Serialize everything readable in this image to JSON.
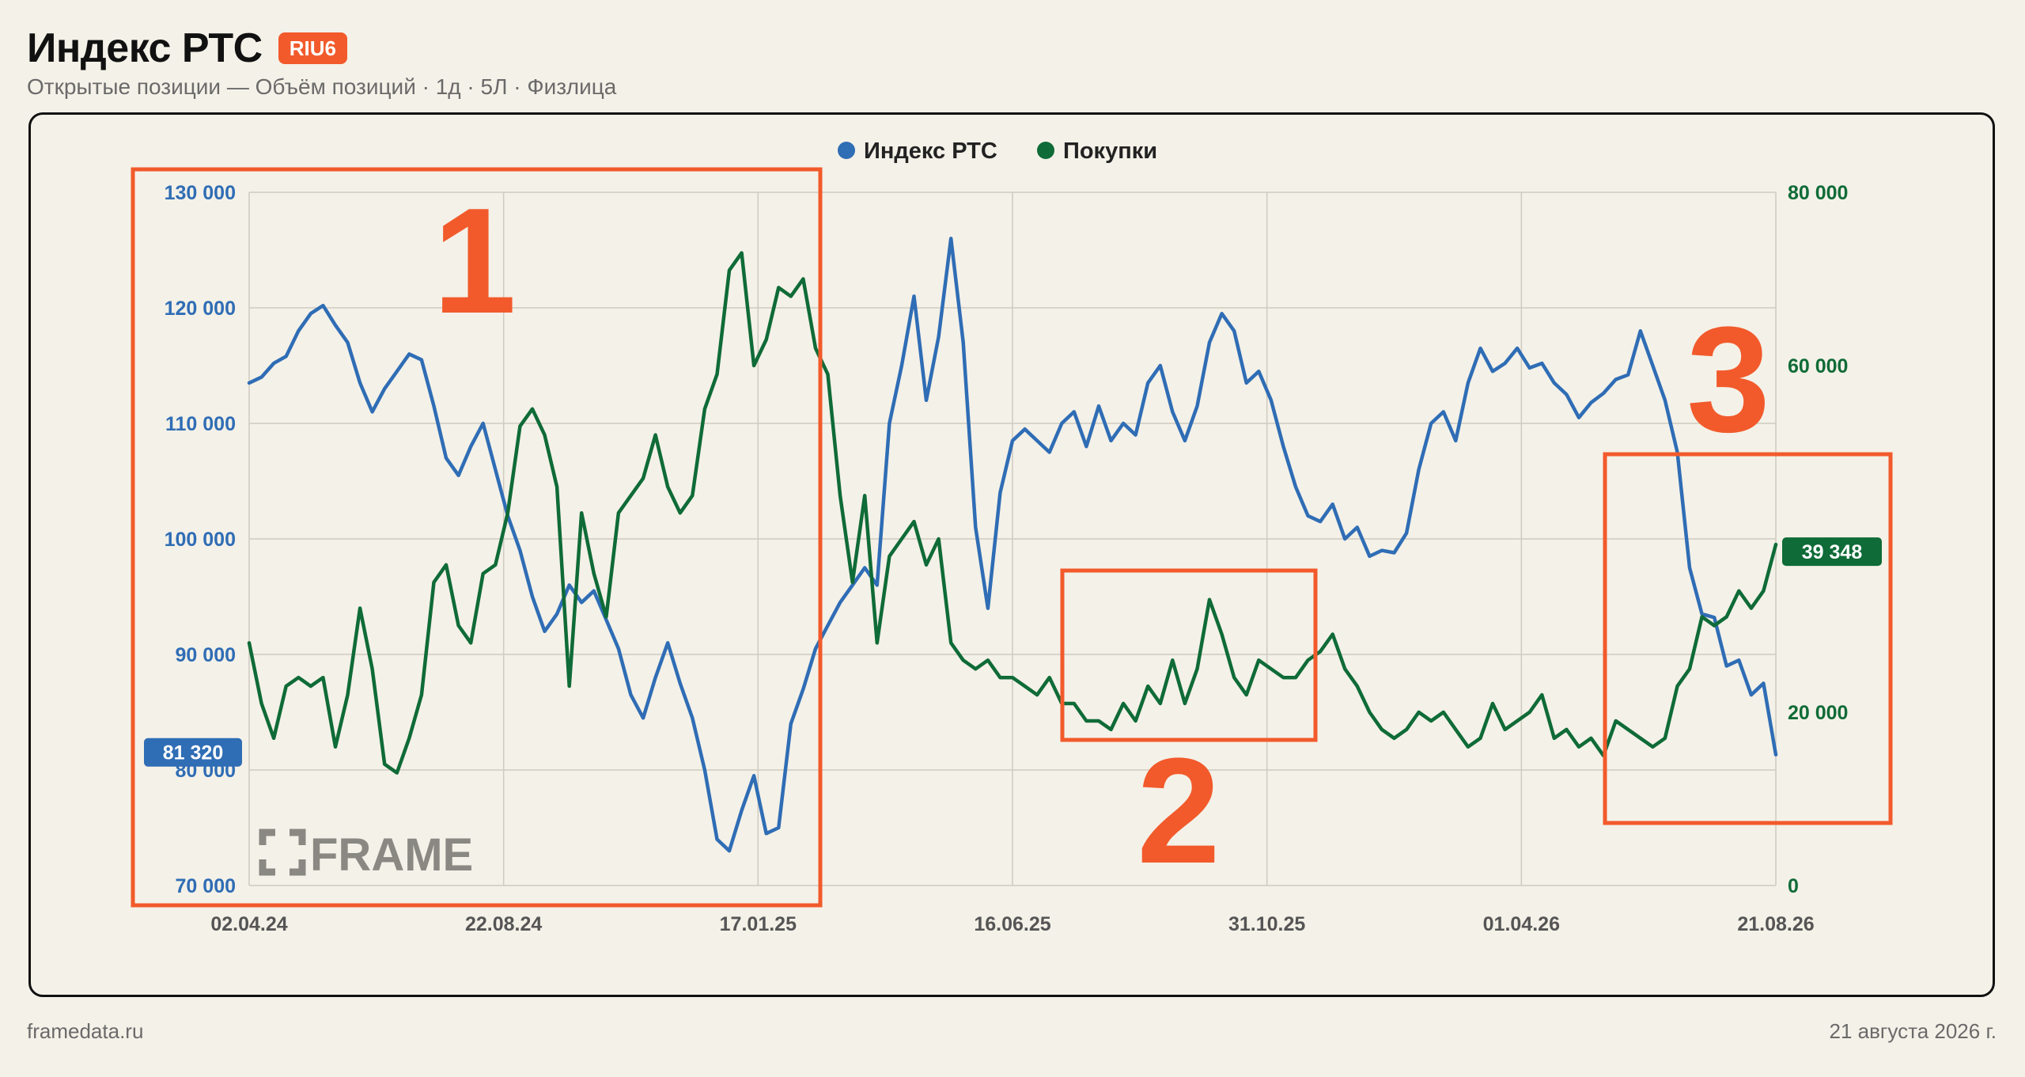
{
  "header": {
    "title": "Индекс РТС",
    "ticker": "RIU6",
    "subtitle": "Открытые позиции — Объём позиций · 1д · 5Л · Физлица"
  },
  "footer": {
    "source": "framedata.ru",
    "date": "21 августа 2026 г."
  },
  "watermark": {
    "text": "FRAME"
  },
  "annotations": [
    {
      "label": "1",
      "color": "#f25a2b"
    },
    {
      "label": "2",
      "color": "#f25a2b"
    },
    {
      "label": "3",
      "color": "#f25a2b"
    }
  ],
  "chart_data": {
    "type": "line",
    "x_ticks": [
      "02.04.24",
      "22.08.24",
      "17.01.25",
      "16.06.25",
      "31.10.25",
      "01.04.26",
      "21.08.26"
    ],
    "legend": [
      "Индекс РТС",
      "Покупки"
    ],
    "legend_position": "top-center",
    "grid": true,
    "y_left": {
      "ticks": [
        "130 000",
        "120 000",
        "110 000",
        "100 000",
        "90 000",
        "80 000",
        "70 000"
      ],
      "range": [
        70000,
        130000
      ],
      "current_value_label": "81 320",
      "color": "#2f6db5"
    },
    "y_right": {
      "ticks": [
        "80 000",
        "60 000",
        "20 000",
        "0"
      ],
      "range": [
        0,
        80000
      ],
      "current_value_label": "39 348",
      "color": "#0f6b37"
    },
    "series": [
      {
        "name": "Индекс РТС",
        "axis": "left",
        "color": "#2f6db5",
        "values": [
          113500,
          114000,
          115200,
          115800,
          118000,
          119500,
          120200,
          118500,
          117000,
          113500,
          111000,
          113000,
          114500,
          116000,
          115500,
          111500,
          107000,
          105500,
          108000,
          110000,
          106000,
          102000,
          99000,
          95000,
          92000,
          93500,
          96000,
          94500,
          95500,
          93000,
          90500,
          86500,
          84500,
          88000,
          91000,
          87500,
          84500,
          80000,
          74000,
          73000,
          76500,
          79500,
          74500,
          75000,
          84000,
          87000,
          90500,
          92500,
          94500,
          96000,
          97500,
          96000,
          110000,
          115000,
          121000,
          112000,
          117500,
          126000,
          117000,
          101000,
          94000,
          104000,
          108500,
          109500,
          108500,
          107500,
          110000,
          111000,
          108000,
          111500,
          108500,
          110000,
          109000,
          113500,
          115000,
          111000,
          108500,
          111500,
          117000,
          119500,
          118000,
          113500,
          114500,
          112000,
          108000,
          104500,
          102000,
          101500,
          103000,
          100000,
          101000,
          98500,
          99000,
          98800,
          100500,
          106000,
          110000,
          111000,
          108500,
          113500,
          116500,
          114500,
          115200,
          116500,
          114800,
          115200,
          113500,
          112500,
          110500,
          111800,
          112600,
          113800,
          114200,
          118000,
          115000,
          112000,
          107500,
          97500,
          93500,
          93200,
          89000,
          89500,
          86500,
          87500,
          81320
        ]
      },
      {
        "name": "Покупки",
        "axis": "right",
        "color": "#0f6b37",
        "values": [
          28000,
          21000,
          17000,
          23000,
          24000,
          23000,
          24000,
          16000,
          22000,
          32000,
          25000,
          14000,
          13000,
          17000,
          22000,
          35000,
          37000,
          30000,
          28000,
          36000,
          37000,
          43000,
          53000,
          55000,
          52000,
          46000,
          23000,
          43000,
          36000,
          31000,
          43000,
          45000,
          47000,
          52000,
          46000,
          43000,
          45000,
          55000,
          59000,
          71000,
          73000,
          60000,
          63000,
          69000,
          68000,
          70000,
          62000,
          59000,
          45000,
          35000,
          45000,
          28000,
          38000,
          40000,
          42000,
          37000,
          40000,
          28000,
          26000,
          25000,
          26000,
          24000,
          24000,
          23000,
          22000,
          24000,
          21000,
          21000,
          19000,
          19000,
          18000,
          21000,
          19000,
          23000,
          21000,
          26000,
          21000,
          25000,
          33000,
          29000,
          24000,
          22000,
          26000,
          25000,
          24000,
          24000,
          26000,
          27000,
          29000,
          25000,
          23000,
          20000,
          18000,
          17000,
          18000,
          20000,
          19000,
          20000,
          18000,
          16000,
          17000,
          21000,
          18000,
          19000,
          20000,
          22000,
          17000,
          18000,
          16000,
          17000,
          15000,
          19000,
          18000,
          17000,
          16000,
          17000,
          23000,
          25000,
          31000,
          30000,
          31000,
          34000,
          32000,
          34000,
          39348
        ]
      }
    ]
  }
}
